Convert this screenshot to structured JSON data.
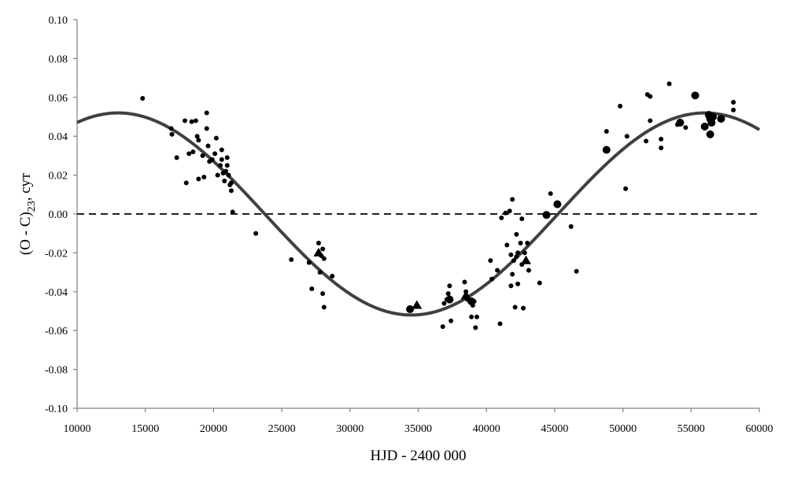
{
  "chart_data": {
    "type": "scatter",
    "title": "",
    "xlabel": "HJD - 2400 000",
    "ylabel": {
      "main": "(O - C)",
      "sub": "23",
      "suffix": ", сут"
    },
    "xlim": [
      10000,
      60000
    ],
    "ylim": [
      -0.1,
      0.1
    ],
    "xticks": [
      10000,
      15000,
      20000,
      25000,
      30000,
      35000,
      40000,
      45000,
      50000,
      55000,
      60000
    ],
    "yticks": [
      -0.1,
      -0.08,
      -0.06,
      -0.04,
      -0.02,
      0.0,
      0.02,
      0.04,
      0.06,
      0.08,
      0.1
    ],
    "ytick_labels": [
      "-0.10",
      "-0.08",
      "-0.06",
      "-0.04",
      "-0.02",
      "0.00",
      "0.02",
      "0.04",
      "0.06",
      "0.08",
      "0.10"
    ],
    "grid": false,
    "reference_line": {
      "y": 0.0,
      "style": "dashed"
    },
    "fit_curve": {
      "type": "sine",
      "amplitude": 0.052,
      "period": 43000,
      "max_at": 13000,
      "offset": 0.0
    },
    "series": [
      {
        "marker": "small-circle",
        "points": [
          [
            14800,
            0.0595
          ],
          [
            16900,
            0.044
          ],
          [
            16950,
            0.041
          ],
          [
            17300,
            0.029
          ],
          [
            17900,
            0.048
          ],
          [
            18000,
            0.016
          ],
          [
            18200,
            0.031
          ],
          [
            18400,
            0.0475
          ],
          [
            18500,
            0.032
          ],
          [
            18700,
            0.048
          ],
          [
            18800,
            0.04
          ],
          [
            18900,
            0.038
          ],
          [
            18900,
            0.018
          ],
          [
            19200,
            0.03
          ],
          [
            19300,
            0.019
          ],
          [
            19500,
            0.052
          ],
          [
            19500,
            0.044
          ],
          [
            19600,
            0.035
          ],
          [
            19700,
            0.027
          ],
          [
            19900,
            0.028
          ],
          [
            20100,
            0.031
          ],
          [
            20200,
            0.039
          ],
          [
            20300,
            0.02
          ],
          [
            20500,
            0.025
          ],
          [
            20600,
            0.033
          ],
          [
            20600,
            0.028
          ],
          [
            20700,
            0.021
          ],
          [
            20800,
            0.017
          ],
          [
            20900,
            0.022
          ],
          [
            21000,
            0.029
          ],
          [
            21000,
            0.025
          ],
          [
            21100,
            0.02
          ],
          [
            21200,
            0.015
          ],
          [
            21300,
            0.016
          ],
          [
            21300,
            0.012
          ],
          [
            21400,
            0.001
          ],
          [
            23100,
            -0.01
          ],
          [
            25700,
            -0.0235
          ],
          [
            27000,
            -0.025
          ],
          [
            27200,
            -0.0385
          ],
          [
            27700,
            -0.015
          ],
          [
            27800,
            -0.03
          ],
          [
            27900,
            -0.0215
          ],
          [
            28000,
            -0.018
          ],
          [
            28000,
            -0.041
          ],
          [
            28100,
            -0.023
          ],
          [
            28100,
            -0.048
          ],
          [
            28700,
            -0.032
          ],
          [
            36800,
            -0.058
          ],
          [
            36900,
            -0.046
          ],
          [
            37100,
            -0.044
          ],
          [
            37200,
            -0.041
          ],
          [
            37300,
            -0.037
          ],
          [
            37400,
            -0.055
          ],
          [
            38400,
            -0.035
          ],
          [
            38500,
            -0.04
          ],
          [
            38600,
            -0.044
          ],
          [
            38900,
            -0.053
          ],
          [
            39000,
            -0.047
          ],
          [
            39100,
            -0.045
          ],
          [
            39200,
            -0.0585
          ],
          [
            39300,
            -0.053
          ],
          [
            40300,
            -0.024
          ],
          [
            40400,
            -0.0335
          ],
          [
            40800,
            -0.029
          ],
          [
            41000,
            -0.0565
          ],
          [
            41100,
            -0.002
          ],
          [
            41400,
            0.0005
          ],
          [
            41500,
            -0.016
          ],
          [
            41700,
            0.0015
          ],
          [
            41800,
            -0.021
          ],
          [
            41800,
            -0.037
          ],
          [
            41900,
            0.0075
          ],
          [
            41900,
            -0.031
          ],
          [
            42000,
            -0.024
          ],
          [
            42100,
            -0.048
          ],
          [
            42200,
            -0.0105
          ],
          [
            42200,
            -0.022
          ],
          [
            42300,
            -0.02
          ],
          [
            42300,
            -0.036
          ],
          [
            42500,
            -0.015
          ],
          [
            42600,
            -0.0025
          ],
          [
            42600,
            -0.026
          ],
          [
            42700,
            -0.0485
          ],
          [
            42800,
            -0.02
          ],
          [
            43000,
            -0.015
          ],
          [
            43100,
            -0.029
          ],
          [
            43900,
            -0.0355
          ],
          [
            44700,
            0.0105
          ],
          [
            46200,
            -0.0065
          ],
          [
            46600,
            -0.0295
          ],
          [
            48800,
            0.0425
          ],
          [
            49800,
            0.0555
          ],
          [
            50200,
            0.013
          ],
          [
            50300,
            0.04
          ],
          [
            51700,
            0.0375
          ],
          [
            51800,
            0.0615
          ],
          [
            52000,
            0.0605
          ],
          [
            52000,
            0.048
          ],
          [
            52800,
            0.0385
          ],
          [
            52800,
            0.034
          ],
          [
            53400,
            0.067
          ],
          [
            54000,
            0.046
          ],
          [
            54600,
            0.0445
          ],
          [
            58100,
            0.0575
          ],
          [
            58100,
            0.0535
          ]
        ]
      },
      {
        "marker": "large-circle",
        "points": [
          [
            34400,
            -0.049
          ],
          [
            37300,
            -0.044
          ],
          [
            38900,
            -0.045
          ],
          [
            44400,
            -0.0005
          ],
          [
            45200,
            0.005
          ],
          [
            48800,
            0.033
          ],
          [
            54200,
            0.047
          ],
          [
            55300,
            0.061
          ],
          [
            56000,
            0.045
          ],
          [
            56300,
            0.051
          ],
          [
            56400,
            0.049
          ],
          [
            56400,
            0.041
          ],
          [
            56500,
            0.047
          ],
          [
            56600,
            0.05
          ],
          [
            57200,
            0.049
          ]
        ]
      },
      {
        "marker": "triangle",
        "points": [
          [
            27700,
            -0.02
          ],
          [
            34900,
            -0.047
          ],
          [
            38500,
            -0.042
          ],
          [
            42900,
            -0.024
          ]
        ]
      }
    ]
  }
}
